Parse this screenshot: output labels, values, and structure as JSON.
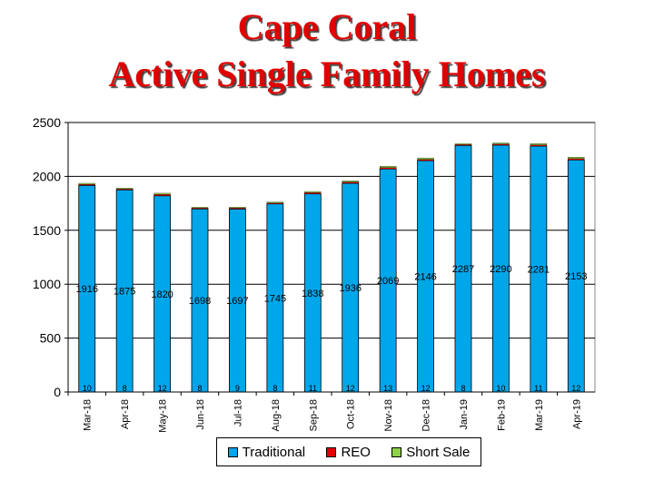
{
  "title_line1": "Cape Coral",
  "title_line2": "Active Single Family Homes",
  "colors": {
    "traditional": "#00a6ea",
    "reo": "#e00000",
    "short_sale": "#8ed14a",
    "title": "#e00000"
  },
  "chart_data": {
    "type": "bar",
    "categories": [
      "Mar-18",
      "Apr-18",
      "May-18",
      "Jun-18",
      "Jul-18",
      "Aug-18",
      "Sep-18",
      "Oct-18",
      "Nov-18",
      "Dec-18",
      "Jan-19",
      "Feb-19",
      "Mar-19",
      "Apr-19"
    ],
    "series": [
      {
        "name": "Traditional",
        "values": [
          1916,
          1875,
          1820,
          1698,
          1697,
          1745,
          1838,
          1936,
          2069,
          2146,
          2287,
          2290,
          2281,
          2153
        ]
      },
      {
        "name": "REO",
        "values": [
          10,
          8,
          12,
          8,
          9,
          8,
          11,
          12,
          13,
          12,
          8,
          10,
          11,
          12
        ]
      },
      {
        "name": "Short Sale",
        "values": [
          10,
          8,
          12,
          8,
          9,
          8,
          11,
          10,
          13,
          13,
          8,
          10,
          13,
          14
        ]
      }
    ],
    "ylim": [
      0,
      2500
    ],
    "yticks": [
      0,
      500,
      1000,
      1500,
      2000,
      2500
    ],
    "grid": true,
    "legend": "bottom"
  }
}
